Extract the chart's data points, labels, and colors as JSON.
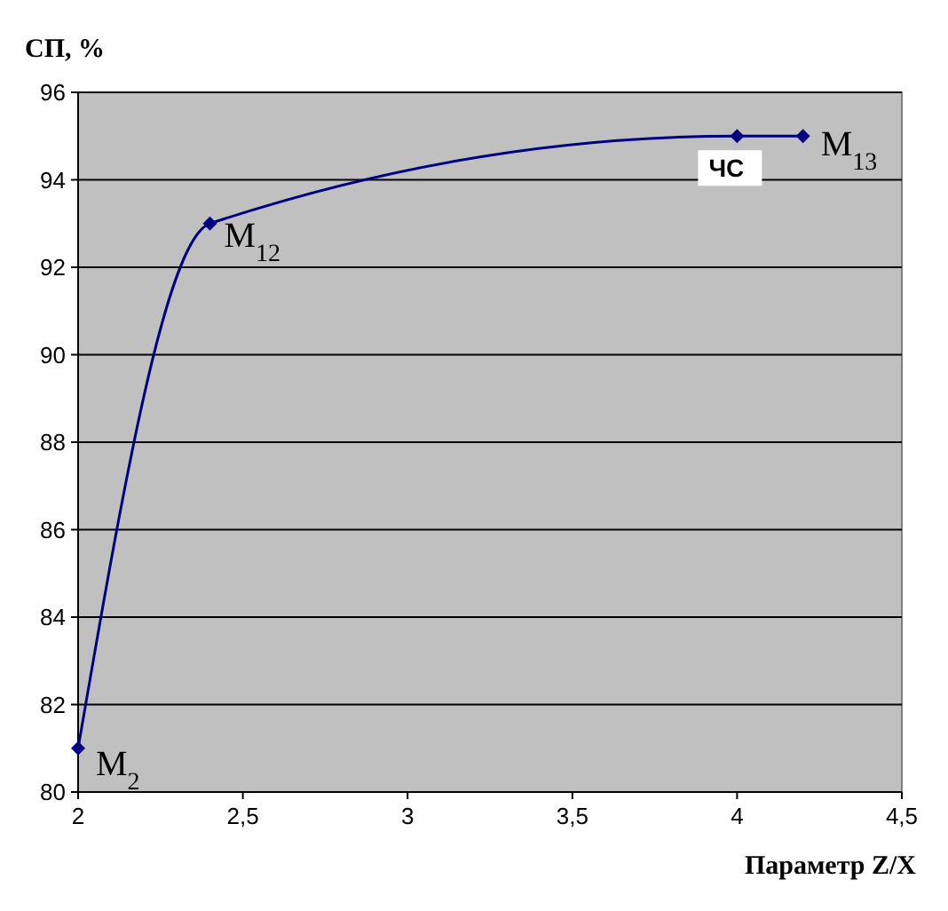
{
  "chart_data": {
    "type": "line",
    "ylabel": "СП, %",
    "xlabel": "Параметр Z/X",
    "x": [
      2,
      2.4,
      4,
      4.2
    ],
    "series": [
      {
        "color": "#000080",
        "values": [
          81,
          93,
          95,
          95
        ]
      }
    ],
    "xlim": [
      2,
      4.5
    ],
    "xticks": [
      2,
      {
        "value": 2.5,
        "label": "2,5"
      },
      3,
      {
        "value": 3.5,
        "label": "3,5"
      },
      4,
      {
        "value": 4.5,
        "label": "4,5"
      }
    ],
    "ylim": [
      80,
      96
    ],
    "yticks": [
      80,
      82,
      84,
      86,
      88,
      90,
      92,
      94,
      96
    ],
    "grid": "y",
    "marker": "diamond",
    "line_style": "solid",
    "annotations": [
      {
        "text": "M$_{2}$",
        "x": 2,
        "y": 81
      },
      {
        "text": "M$_{12}$",
        "x": 2.4,
        "y": 93
      },
      {
        "text": "ЧС",
        "x": 4,
        "y": 95
      },
      {
        "text": "M$_{13}$",
        "x": 4.2,
        "y": 95
      }
    ]
  }
}
